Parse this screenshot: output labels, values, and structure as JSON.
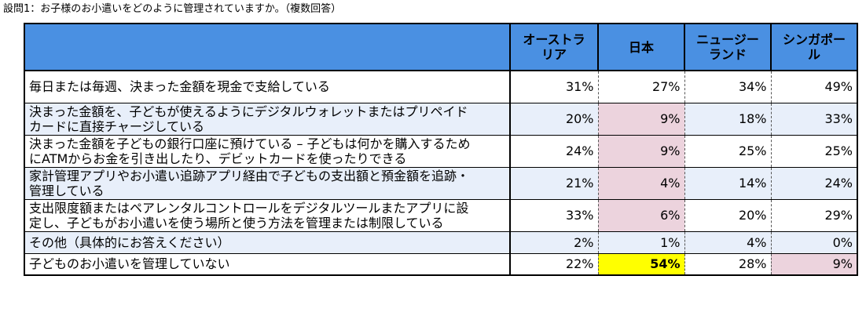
{
  "title": "設問1：お子様のお小遣いをどのように管理されていますか。（複数回答）",
  "columns": [
    "オーストラリア",
    "日本",
    "ニュージーランド",
    "シンガポール"
  ],
  "columns_display": [
    [
      "オーストラ",
      "リア"
    ],
    [
      "日本"
    ],
    [
      "ニュージー",
      "ランド"
    ],
    [
      "シンガポー",
      "ル"
    ]
  ],
  "rows": [
    {
      "label": [
        "毎日または毎週、決まった金額を現金で支給している"
      ],
      "values": [
        "31%",
        "27%",
        "34%",
        "49%"
      ]
    },
    {
      "label": [
        "決まった金額を、子どもが使えるようにデジタルウォレットまたはプリペイド",
        "カードに直接チャージしている"
      ],
      "values": [
        "20%",
        "9%",
        "18%",
        "33%"
      ]
    },
    {
      "label": [
        "決まった金額を子どもの銀行口座に預けている – 子どもは何かを購入するため",
        "にATMからお金を引き出したり、デビットカードを使ったりできる"
      ],
      "values": [
        "24%",
        "9%",
        "25%",
        "25%"
      ]
    },
    {
      "label": [
        "家計管理アプリやお小遣い追跡アプリ経由で子どもの支出額と預金額を追跡・",
        "管理している"
      ],
      "values": [
        "21%",
        "4%",
        "14%",
        "24%"
      ]
    },
    {
      "label": [
        "支出限度額またはペアレンタルコントロールをデジタルツールまたアプリに設",
        "定し、子どもがお小遣いを使う場所と使う方法を管理または制限している"
      ],
      "values": [
        "33%",
        "6%",
        "20%",
        "29%"
      ]
    },
    {
      "label": [
        "その他（具体的にお答えください）"
      ],
      "values": [
        "2%",
        "1%",
        "4%",
        "0%"
      ]
    },
    {
      "label": [
        "子どものお小遣いを管理していない"
      ],
      "values": [
        "22%",
        "54%",
        "28%",
        "9%"
      ]
    }
  ],
  "colors": {
    "header_bg": "#4a90e2",
    "alt_row_bg": "#e8effa",
    "highlight_pink": "#ecd3dd",
    "highlight_yellow": "#ffff00"
  }
}
